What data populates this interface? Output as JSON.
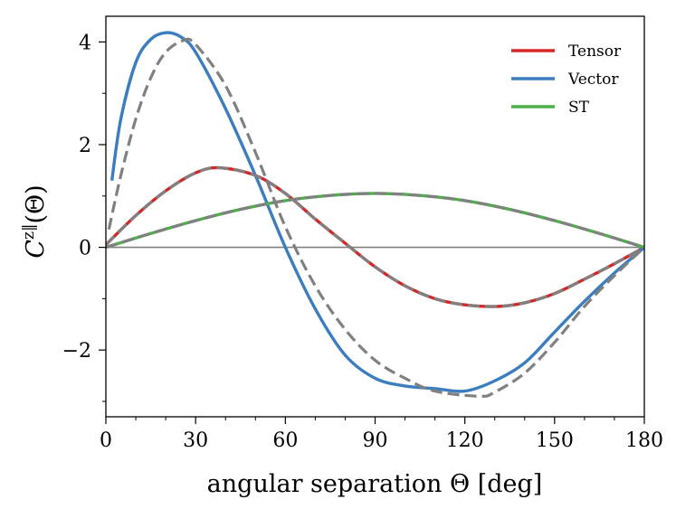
{
  "chart_data": {
    "type": "line",
    "title": "",
    "xlabel": "angular separation Θ [deg]",
    "ylabel_main": "C",
    "ylabel_sup": "z‖",
    "ylabel_arg": "(Θ)",
    "xlim": [
      0,
      180
    ],
    "ylim": [
      -3.3,
      4.5
    ],
    "xticks": [
      0,
      30,
      60,
      90,
      120,
      150,
      180
    ],
    "xtick_labels": [
      "0",
      "30",
      "60",
      "90",
      "120",
      "150",
      "180"
    ],
    "yticks": [
      -2,
      0,
      2,
      4
    ],
    "ytick_labels": [
      "−2",
      "0",
      "2",
      "4"
    ],
    "grid": false,
    "zero_line": true,
    "legend_position": "top-right",
    "colors": {
      "tensor": "#d62728",
      "vector": "#3b7dbf",
      "st": "#4daf4a",
      "reference": "#808080",
      "zero": "#808080"
    },
    "series": [
      {
        "name": "Tensor",
        "color": "#d62728",
        "x": [
          0,
          10,
          20,
          30,
          38,
          50,
          60,
          70,
          80,
          90,
          100,
          110,
          120,
          131,
          140,
          150,
          160,
          170,
          180
        ],
        "values": [
          0.05,
          0.62,
          1.1,
          1.45,
          1.55,
          1.4,
          1.05,
          0.55,
          0.08,
          -0.38,
          -0.75,
          -1.0,
          -1.12,
          -1.15,
          -1.08,
          -0.9,
          -0.62,
          -0.32,
          0.0
        ]
      },
      {
        "name": "Vector",
        "color": "#3b7dbf",
        "x": [
          2,
          5,
          10,
          15,
          20,
          25,
          30,
          40,
          50,
          60,
          70,
          80,
          90,
          100,
          110,
          120,
          130,
          140,
          150,
          160,
          170,
          180
        ],
        "values": [
          1.3,
          2.5,
          3.6,
          4.05,
          4.18,
          4.1,
          3.8,
          2.7,
          1.4,
          0.0,
          -1.2,
          -2.1,
          -2.55,
          -2.7,
          -2.75,
          -2.8,
          -2.6,
          -2.25,
          -1.65,
          -1.05,
          -0.5,
          0.0
        ]
      },
      {
        "name": "ST",
        "color": "#4daf4a",
        "x": [
          0,
          15,
          30,
          45,
          60,
          75,
          90,
          105,
          120,
          135,
          150,
          165,
          180
        ],
        "values": [
          0.0,
          0.27,
          0.52,
          0.74,
          0.91,
          1.01,
          1.05,
          1.01,
          0.91,
          0.74,
          0.52,
          0.27,
          0.0
        ]
      },
      {
        "name": "Vector reference (dashed)",
        "color": "#808080",
        "dashed": true,
        "x": [
          1,
          5,
          10,
          15,
          20,
          26,
          30,
          40,
          50,
          60,
          70,
          80,
          90,
          100,
          110,
          125,
          130,
          140,
          150,
          160,
          170,
          180
        ],
        "values": [
          0.35,
          1.4,
          2.5,
          3.3,
          3.8,
          4.03,
          3.95,
          3.15,
          1.85,
          0.4,
          -0.75,
          -1.6,
          -2.2,
          -2.55,
          -2.8,
          -2.9,
          -2.82,
          -2.45,
          -1.85,
          -1.15,
          -0.55,
          0.0
        ]
      },
      {
        "name": "Tensor reference (dashed)",
        "color": "#808080",
        "dashed": true,
        "x": [
          0,
          10,
          20,
          30,
          38,
          50,
          60,
          70,
          80,
          90,
          100,
          110,
          120,
          131,
          140,
          150,
          160,
          170,
          180
        ],
        "values": [
          0.05,
          0.62,
          1.1,
          1.45,
          1.55,
          1.4,
          1.05,
          0.55,
          0.08,
          -0.38,
          -0.75,
          -1.0,
          -1.12,
          -1.15,
          -1.08,
          -0.9,
          -0.62,
          -0.32,
          0.0
        ]
      },
      {
        "name": "ST reference (dashed)",
        "color": "#808080",
        "dashed": true,
        "x": [
          0,
          15,
          30,
          45,
          60,
          75,
          90,
          105,
          120,
          135,
          150,
          165,
          180
        ],
        "values": [
          0.0,
          0.27,
          0.52,
          0.74,
          0.91,
          1.01,
          1.05,
          1.01,
          0.91,
          0.74,
          0.52,
          0.27,
          0.0
        ]
      }
    ],
    "legend": [
      {
        "label": "Tensor",
        "color": "#d62728"
      },
      {
        "label": "Vector",
        "color": "#3b7dbf"
      },
      {
        "label": "ST",
        "color": "#4daf4a"
      }
    ]
  }
}
